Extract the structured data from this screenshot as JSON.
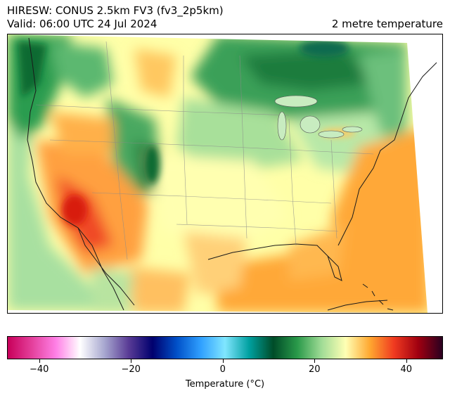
{
  "header": {
    "model_line": "HIRESW: CONUS 2.5km FV3 (fv3_2p5km)",
    "valid_line": "Valid: 06:00 UTC 24 Jul 2024",
    "field_name": "2 metre temperature"
  },
  "colorbar": {
    "label": "Temperature (°C)",
    "min": -47,
    "max": 48,
    "ticks": [
      {
        "value": -40,
        "label": "−40"
      },
      {
        "value": -20,
        "label": "−20"
      },
      {
        "value": 0,
        "label": "0"
      },
      {
        "value": 20,
        "label": "20"
      },
      {
        "value": 40,
        "label": "40"
      }
    ],
    "colors": [
      "#c8005a",
      "#e4409c",
      "#ff80e6",
      "#ffffff",
      "#a8a8d0",
      "#5a3c96",
      "#00006e",
      "#0050c8",
      "#30a0ff",
      "#80e6ff",
      "#00a0a0",
      "#004c28",
      "#2a9a4a",
      "#a0dc96",
      "#ffffb4",
      "#ffa830",
      "#f03a20",
      "#a00010",
      "#2a0020"
    ]
  }
}
